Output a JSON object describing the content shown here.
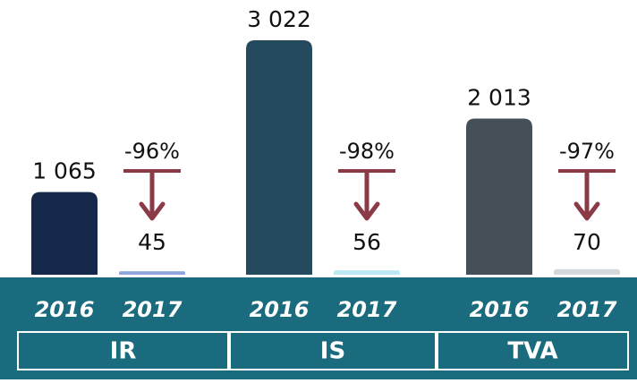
{
  "chart_data": {
    "type": "bar",
    "categories": [
      "IR",
      "IS",
      "TVA"
    ],
    "series": [
      {
        "name": "2016",
        "colors": [
          "#15284a",
          "#244a5e",
          "#454f58"
        ],
        "values": [
          1065,
          3022,
          2013
        ],
        "value_labels": [
          "1 065",
          "3 022",
          "2 013"
        ]
      },
      {
        "name": "2017",
        "colors": [
          "#8fa6e0",
          "#bde9f5",
          "#d5d8db"
        ],
        "values": [
          45,
          56,
          70
        ]
      }
    ],
    "annotations": [
      "-96%",
      "-98%",
      "-97%"
    ],
    "band_color": "#1a6b7e",
    "arrow_color": "#8b3a47"
  }
}
